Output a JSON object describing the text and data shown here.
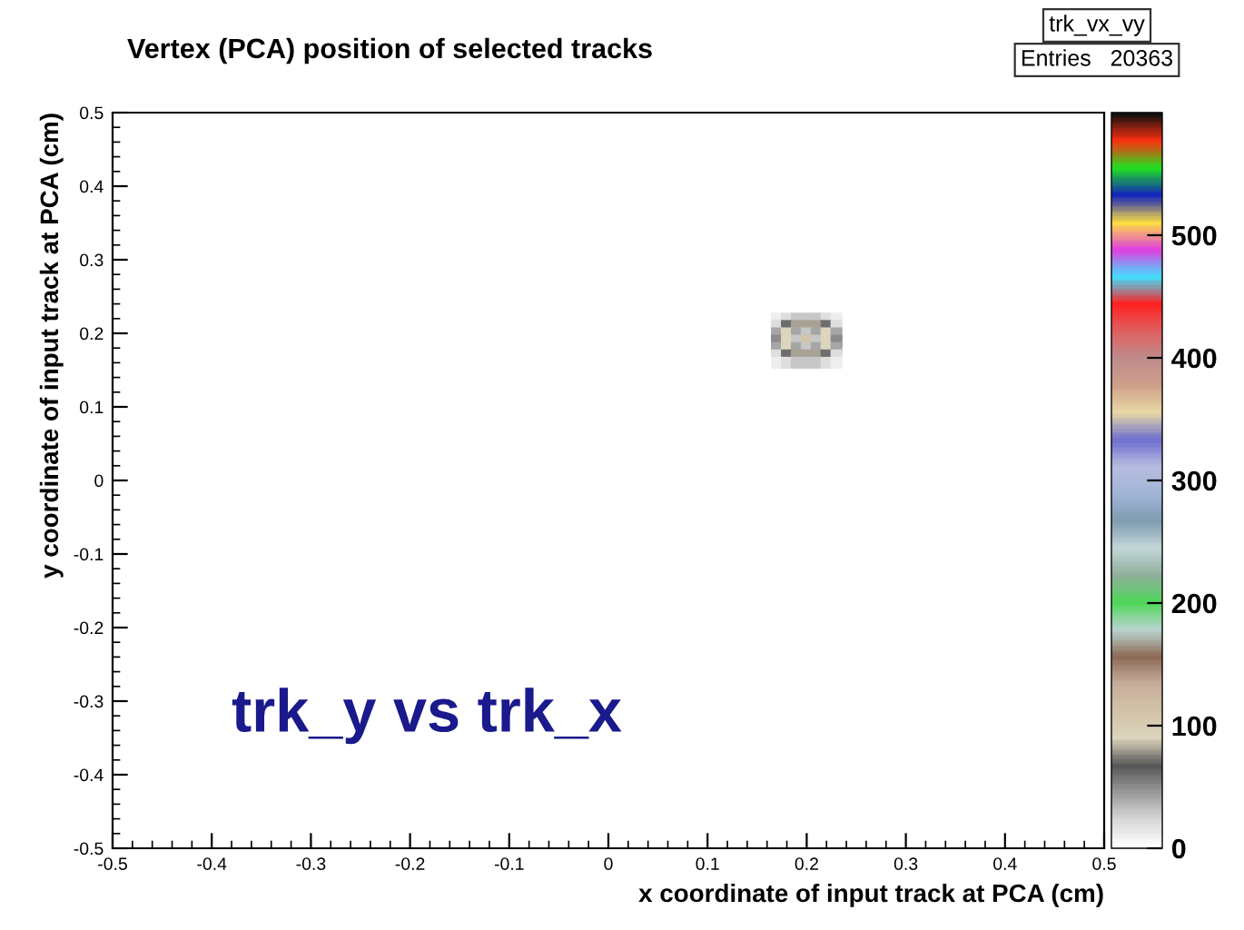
{
  "chart_data": {
    "type": "scatter",
    "title": "Vertex (PCA) position of selected tracks",
    "xlabel": "x coordinate of input track at PCA (cm)",
    "ylabel": "y coordinate of input track at PCA (cm)",
    "annotations": [
      "trk_vx_vy",
      "Entries   20363",
      "trk_y vs trk_x"
    ],
    "marker": "square",
    "x": [
      0.17,
      0.18,
      0.19,
      0.2,
      0.21,
      0.22,
      0.23,
      0.17,
      0.18,
      0.19,
      0.2,
      0.21,
      0.22,
      0.23,
      0.17,
      0.18,
      0.19,
      0.2,
      0.21,
      0.22,
      0.23,
      0.17,
      0.18,
      0.19,
      0.2,
      0.21,
      0.22,
      0.23,
      0.17,
      0.18,
      0.19,
      0.2,
      0.21,
      0.22,
      0.23,
      0.17,
      0.18,
      0.19,
      0.2,
      0.21,
      0.22,
      0.23,
      0.17,
      0.18,
      0.19,
      0.2,
      0.21,
      0.22,
      0.23
    ],
    "values": [
      0.22,
      0.22,
      0.22,
      0.22,
      0.22,
      0.22,
      0.22,
      0.21,
      0.21,
      0.21,
      0.21,
      0.21,
      0.21,
      0.21,
      0.2,
      0.2,
      0.2,
      0.2,
      0.2,
      0.2,
      0.2,
      0.19,
      0.19,
      0.19,
      0.19,
      0.19,
      0.19,
      0.19,
      0.18,
      0.18,
      0.18,
      0.18,
      0.18,
      0.18,
      0.18,
      0.17,
      0.17,
      0.17,
      0.17,
      0.17,
      0.17,
      0.17,
      0.16,
      0.16,
      0.16,
      0.16,
      0.16,
      0.16,
      0.16
    ],
    "cvalues": [
      10,
      20,
      30,
      30,
      30,
      20,
      10,
      20,
      60,
      80,
      80,
      80,
      60,
      20,
      40,
      90,
      40,
      30,
      40,
      90,
      40,
      50,
      90,
      30,
      110,
      30,
      90,
      50,
      40,
      90,
      40,
      30,
      40,
      90,
      40,
      20,
      60,
      80,
      80,
      80,
      60,
      20,
      10,
      20,
      30,
      30,
      30,
      20,
      10
    ],
    "xlim": [
      -0.5,
      0.5
    ],
    "ylim": [
      -0.5,
      0.5
    ],
    "xticks": [
      -0.5,
      -0.4,
      -0.3,
      -0.2,
      -0.1,
      0,
      0.1,
      0.2,
      0.3,
      0.4,
      0.5
    ],
    "yticks": [
      -0.5,
      -0.4,
      -0.3,
      -0.2,
      -0.1,
      0,
      0.1,
      0.2,
      0.3,
      0.4,
      0.5
    ],
    "clim": [
      0,
      600
    ],
    "cticks": [
      0,
      100,
      200,
      300,
      400,
      500
    ],
    "grid": false
  }
}
